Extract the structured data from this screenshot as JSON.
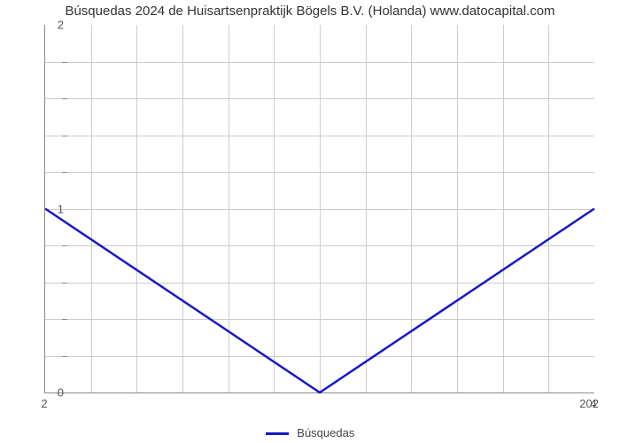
{
  "chart": {
    "type": "line",
    "title": "Búsquedas 2024 de Huisartsenpraktijk Bögels B.V. (Holanda) www.datocapital.com",
    "title_fontsize": 15,
    "title_color": "#333333",
    "background_color": "#ffffff",
    "grid_color": "#cccccc",
    "axis_color": "#888888",
    "series": {
      "label": "Búsquedas",
      "color": "#1818c8",
      "line_width": 2.5,
      "x": [
        2,
        3,
        4
      ],
      "y": [
        1,
        0,
        1
      ]
    },
    "xlim": [
      2,
      4
    ],
    "ylim": [
      0,
      2
    ],
    "y_major_ticks": [
      0,
      1,
      2
    ],
    "y_minor_count": 4,
    "x_major_ticks": [
      2,
      4
    ],
    "x_minor_count": 12,
    "x_secondary_label": "202",
    "label_fontsize": 13,
    "legend_fontsize": 13
  }
}
